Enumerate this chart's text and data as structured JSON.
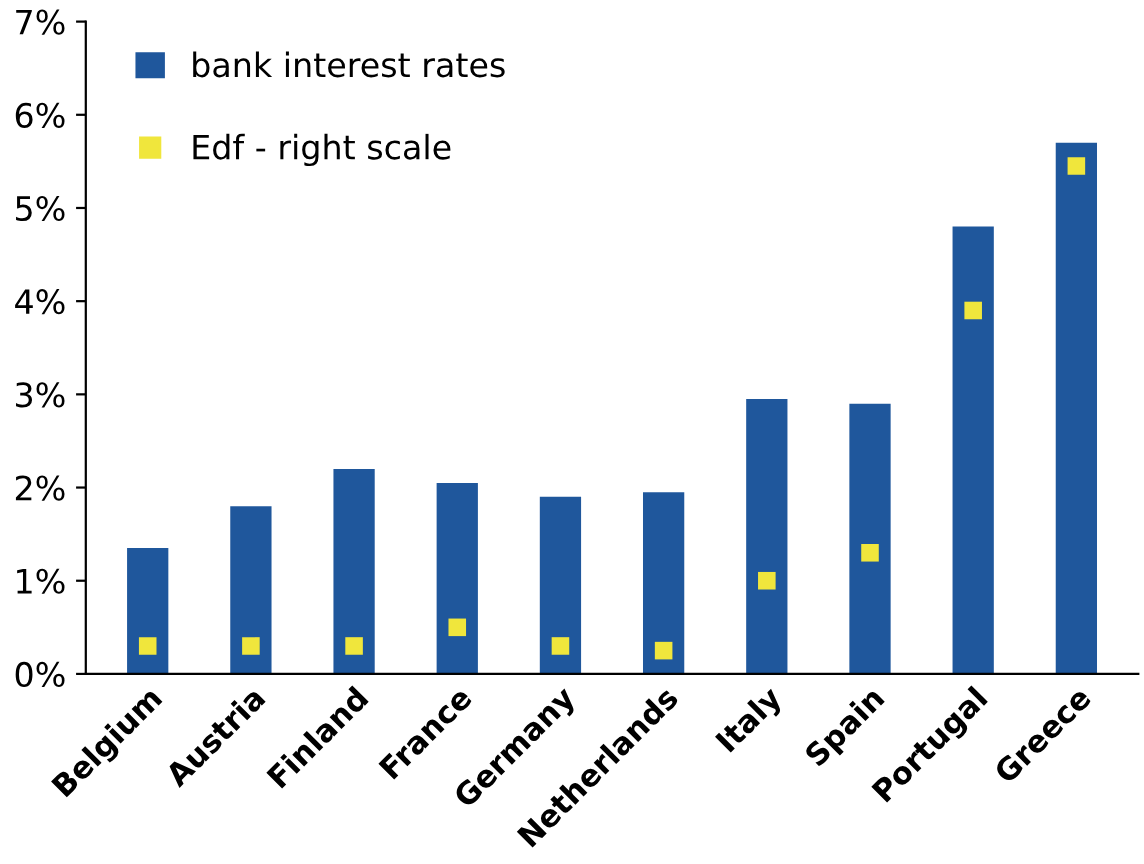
{
  "chart_data": {
    "type": "bar",
    "categories": [
      "Belgium",
      "Austria",
      "Finland",
      "France",
      "Germany",
      "Netherlands",
      "Italy",
      "Spain",
      "Portugal",
      "Greece"
    ],
    "series": [
      {
        "name": "bank interest rates",
        "color": "#1f579c",
        "values": [
          1.35,
          1.8,
          2.2,
          2.05,
          1.9,
          1.95,
          2.95,
          2.9,
          4.8,
          5.7
        ]
      },
      {
        "name": "Edf - right scale",
        "type": "scatter",
        "marker": "square",
        "color": "#f0e63c",
        "values": [
          0.3,
          0.3,
          0.3,
          0.5,
          0.3,
          0.25,
          1.0,
          1.3,
          3.9,
          5.45
        ]
      }
    ],
    "ylim": [
      0,
      7
    ],
    "yticks": [
      {
        "value": 0,
        "label": "0%"
      },
      {
        "value": 1,
        "label": "1%"
      },
      {
        "value": 2,
        "label": "2%"
      },
      {
        "value": 3,
        "label": "3%"
      },
      {
        "value": 4,
        "label": "4%"
      },
      {
        "value": 5,
        "label": "5%"
      },
      {
        "value": 6,
        "label": "6%"
      },
      {
        "value": 7,
        "label": "7%"
      }
    ],
    "grid": false,
    "legend": "top left"
  }
}
